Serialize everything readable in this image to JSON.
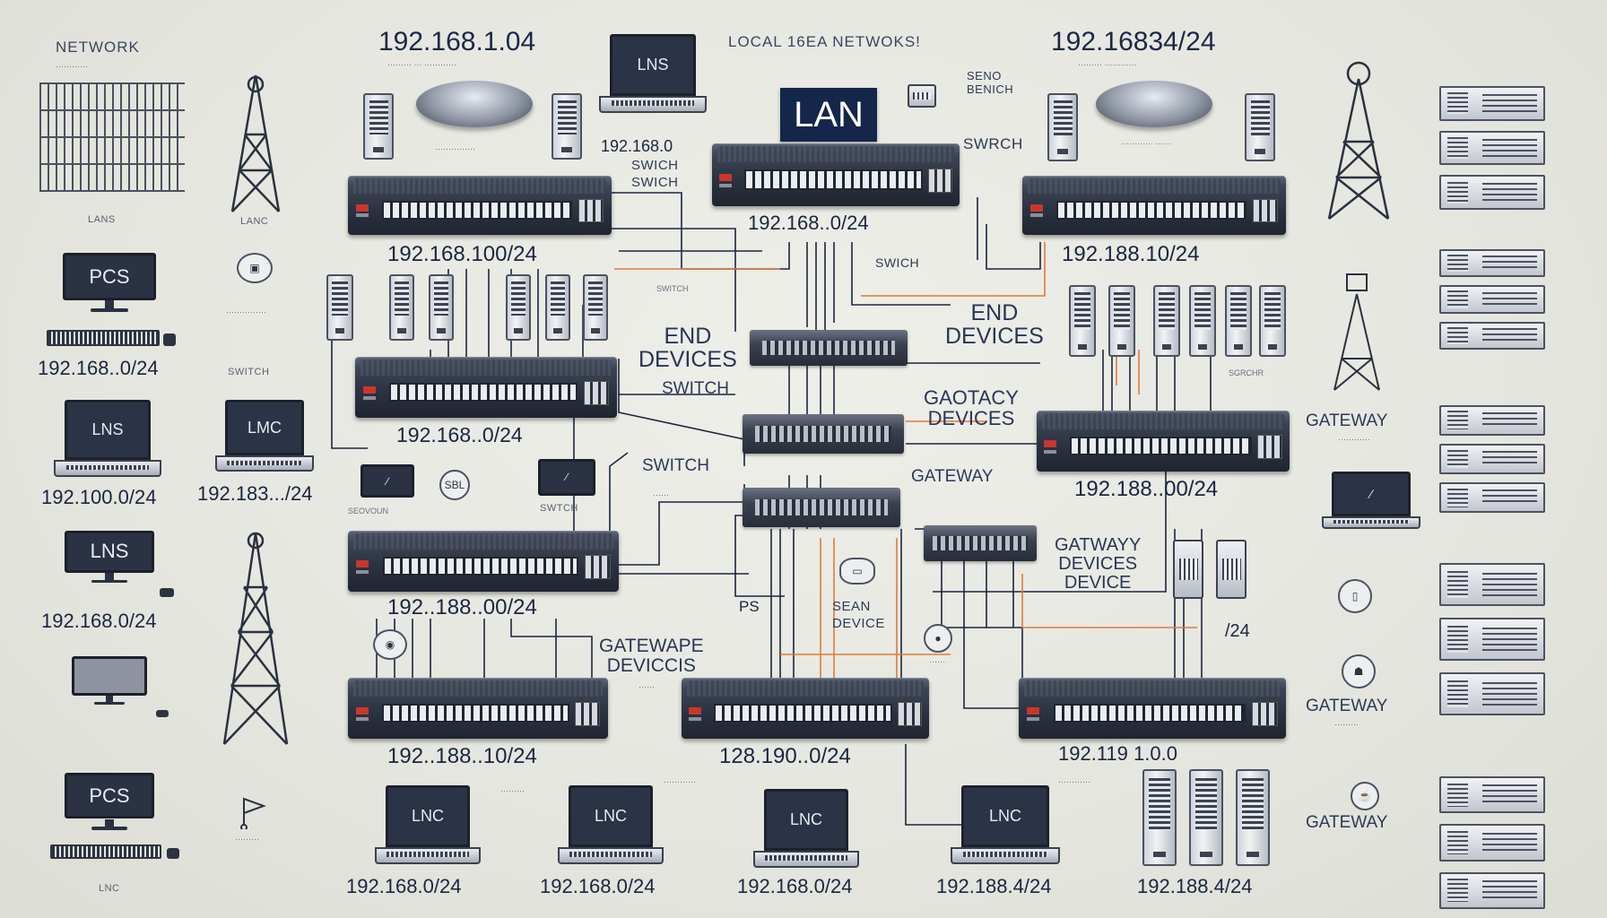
{
  "labels": {
    "network": "NETWORK",
    "lans_tl": "LANS",
    "lanc": "LANC",
    "local_title": "LOCAL 16EA NETWOKS!",
    "lan_box": "LAN",
    "ip_top_left": "192.168.1.04",
    "ip_top_right": "192.16834/24",
    "pcs1": "PCS",
    "pcs2": "PCS",
    "lns1": "LNS",
    "lns2": "LNS",
    "lns_laptop": "LNS",
    "lmc": "LMC",
    "lnc1": "LNC",
    "lnc2": "LNC",
    "lnc3": "LNC",
    "lnc4": "LNC",
    "ip_left1": "192.168..0/24",
    "ip_left2": "192.100.0/24",
    "ip_left3": "192.168.0/24",
    "ip_left4": "192.183.../24",
    "switch_small_left": "SWITCH",
    "switch_mid": "SWITCH",
    "switch_mid2": "SWITCH",
    "switch_small_mid": "SWITCH",
    "switch_right_small": "SWICH",
    "swrch": "SWRCH",
    "seno": "SENO\nBENICH",
    "end_devices_left": "END\nDEVICES",
    "end_devices_right": "END\nDEVICES",
    "gaotacy": "GAOTACY\nDEVICES",
    "gateway_mid": "GATEWAY",
    "gatwaye": "GATEWAPE\nDEVICCIS",
    "gatwasy": "GATWAYY\nDEVICES\nDEVICE",
    "gateway_r1": "GATEWAY",
    "gateway_r2": "GATEWAY",
    "gateway_r3": "GATEWAY",
    "sw1_ip": "192.168.100/24",
    "sw_top_mid_ip": "192.168..0/24",
    "sw_top_right_ip": "192.188.10/24",
    "sw2_ip": "192.168..0/24",
    "sw3_ip": "192.188..00/24",
    "sw4_ip": "192..188..00/24",
    "sw5_ip": "192..188..10/24",
    "sw6_ip": "128.190..0/24",
    "sw7_ip": "192.119 1.0.0",
    "slash24": "/24",
    "ip_bottom1": "192.168.0/24",
    "ip_bottom2": "192.168.0/24",
    "ip_bottom3": "192.168.0/24",
    "ip_bottom4": "192.188.4/24",
    "ip_bottom5": "192.188.4/24",
    "ip_1921680": "192.168.0",
    "swich_sw": "SWICH\nSWICH",
    "sean_device": "SEAN\nDEVICE",
    "ps": "PS",
    "seovoun": "SEOVOUN",
    "swtch_small_label": "SWTCH",
    "sgrchr": "SGRCHR"
  },
  "colors": {
    "background": "#e8e9e2",
    "navy": "#14264a",
    "wire_dark": "#1c2540",
    "wire_orange": "#e07a3a"
  }
}
